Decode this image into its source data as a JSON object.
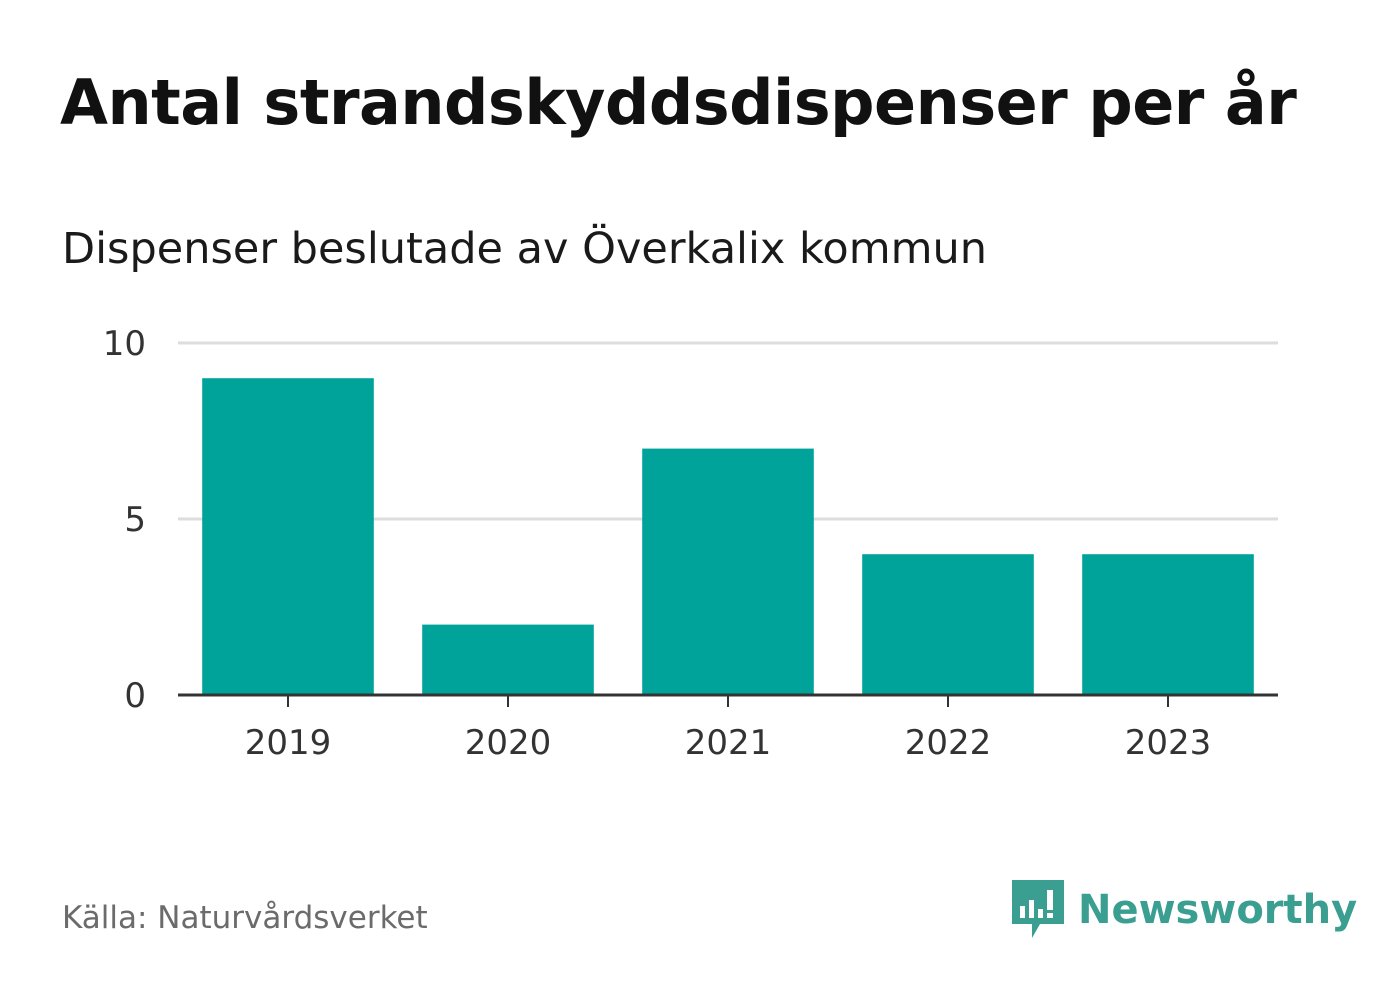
{
  "colors": {
    "bar": "#00a39a",
    "grid": "#dddddd",
    "axis": "#333333",
    "brand": "#3a9e91"
  },
  "chart_data": {
    "type": "bar",
    "title": "Antal strandskyddsdispenser per år",
    "subtitle": "Dispenser beslutade av Överkalix kommun",
    "categories": [
      "2019",
      "2020",
      "2021",
      "2022",
      "2023"
    ],
    "values": [
      9,
      2,
      7,
      4,
      4
    ],
    "ylim": [
      0,
      10
    ],
    "yticks": [
      "0",
      "5",
      "10"
    ],
    "xlabel": "",
    "ylabel": "",
    "grid": true
  },
  "footer": {
    "source": "Källa: Naturvårdsverket",
    "brand": "Newsworthy",
    "brand_icon": "newsworthy-logo-icon"
  }
}
